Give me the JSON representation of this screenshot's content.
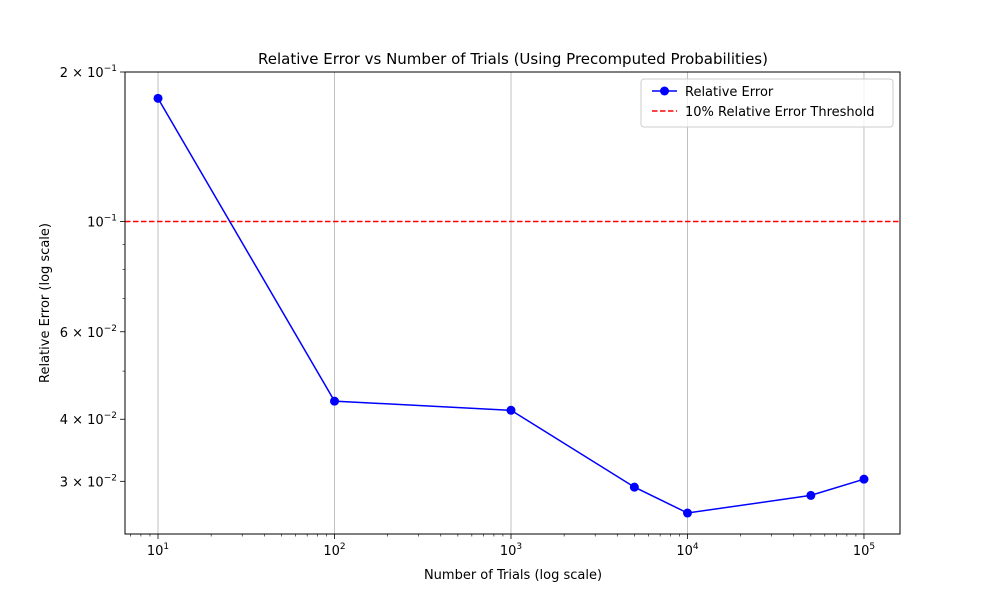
{
  "chart_data": {
    "type": "line",
    "title": "Relative Error vs Number of Trials (Using Precomputed Probabilities)",
    "xlabel": "Number of Trials (log scale)",
    "ylabel": "Relative Error (log scale)",
    "x_scale": "log",
    "y_scale": "log",
    "xlim": [
      6.5,
      160000
    ],
    "ylim": [
      0.0235,
      0.2
    ],
    "grid": "vertical",
    "legend_position": "top-right",
    "x_ticks": [
      {
        "value": 10,
        "base": "10",
        "exp": "1"
      },
      {
        "value": 100,
        "base": "10",
        "exp": "2"
      },
      {
        "value": 1000,
        "base": "10",
        "exp": "3"
      },
      {
        "value": 10000,
        "base": "10",
        "exp": "4"
      },
      {
        "value": 100000,
        "base": "10",
        "exp": "5"
      }
    ],
    "y_ticks": [
      {
        "value": 0.2,
        "base": "2 × 10",
        "exp": "−1"
      },
      {
        "value": 0.1,
        "base": "10",
        "exp": "−1"
      },
      {
        "value": 0.06,
        "base": "6 × 10",
        "exp": "−2"
      },
      {
        "value": 0.04,
        "base": "4 × 10",
        "exp": "−2"
      },
      {
        "value": 0.03,
        "base": "3 × 10",
        "exp": "−2"
      }
    ],
    "series": [
      {
        "name": "Relative Error",
        "color": "#0000ff",
        "style": "solid",
        "marker": "circle",
        "x": [
          10,
          100,
          1000,
          5000,
          10000,
          50000,
          100000
        ],
        "y": [
          0.177,
          0.0435,
          0.0417,
          0.0292,
          0.0259,
          0.0281,
          0.0303
        ]
      }
    ],
    "threshold": {
      "name": "10% Relative Error Threshold",
      "value": 0.1,
      "color": "#ff0000",
      "style": "dashed"
    }
  }
}
